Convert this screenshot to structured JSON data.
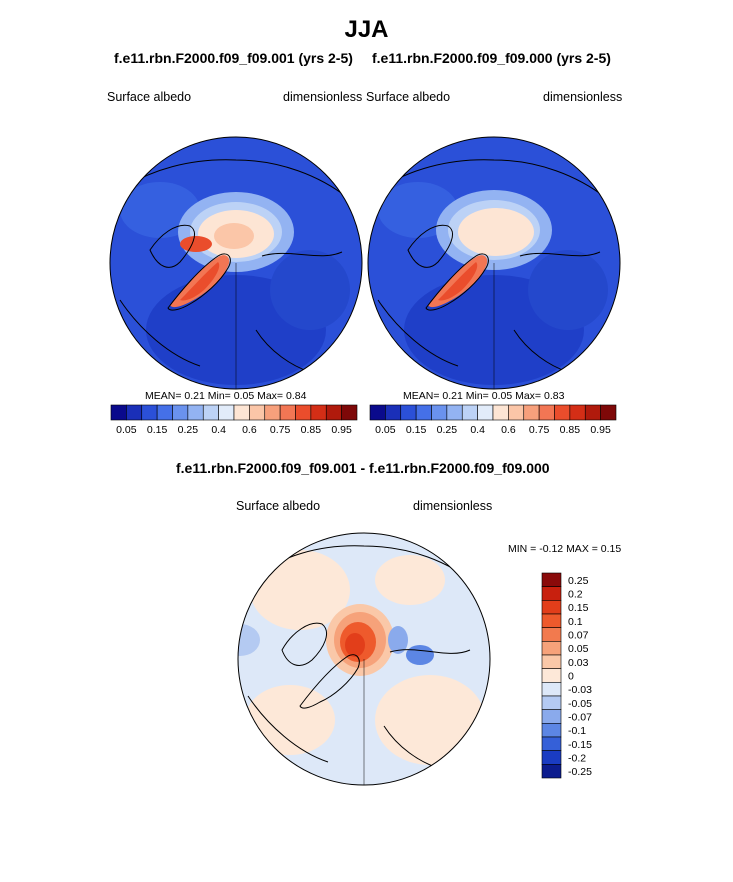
{
  "main_title": "JJA",
  "panels": [
    {
      "run_title": "f.e11.rbn.F2000.f09_f09.001 (yrs 2-5)",
      "left_label": "Surface albedo",
      "right_label": "dimensionless",
      "mean_label": "MEAN=",
      "mean": "0.21",
      "min_label": "Min=",
      "min": "0.05",
      "max_label": "Max=",
      "max": "0.84"
    },
    {
      "run_title": "f.e11.rbn.F2000.f09_f09.000 (yrs 2-5)",
      "left_label": "Surface albedo",
      "right_label": "dimensionless",
      "mean_label": "MEAN=",
      "mean": "0.21",
      "min_label": "Min=",
      "min": "0.05",
      "max_label": "Max=",
      "max": "0.83"
    }
  ],
  "colorbar": {
    "ticks": [
      "0.05",
      "0.15",
      "0.25",
      "0.4",
      "0.6",
      "0.75",
      "0.85",
      "0.95"
    ],
    "colors": [
      "#0a0a8c",
      "#1a2fb8",
      "#2b50d8",
      "#4570e8",
      "#6a92ee",
      "#93b3f2",
      "#bcd2f6",
      "#e2ecfa",
      "#fde5d4",
      "#fbc6a8",
      "#f7a07c",
      "#f27654",
      "#ea4d2c",
      "#d42e16",
      "#b01a0c",
      "#7e0808"
    ]
  },
  "diff": {
    "title": "f.e11.rbn.F2000.f09_f09.001 - f.e11.rbn.F2000.f09_f09.000",
    "left_label": "Surface albedo",
    "right_label": "dimensionless",
    "minmax": "MIN =  -0.12 MAX =   0.15",
    "ticks": [
      "0.25",
      "0.2",
      "0.15",
      "0.1",
      "0.07",
      "0.05",
      "0.03",
      "0",
      "-0.03",
      "-0.05",
      "-0.07",
      "-0.1",
      "-0.15",
      "-0.2",
      "-0.25"
    ],
    "colors": [
      "#8a0a0a",
      "#c8200e",
      "#e23e1a",
      "#ee5a2c",
      "#f27a4e",
      "#f6a27a",
      "#fac8a8",
      "#fde8d8",
      "#dde8f8",
      "#b4caf2",
      "#8aaaec",
      "#5c86e4",
      "#3560d8",
      "#1a3cc2",
      "#0c1c8e"
    ]
  },
  "chart_data": [
    {
      "type": "heatmap",
      "title": "f.e11.rbn.F2000.f09_f09.001 (yrs 2-5)",
      "variable": "Surface albedo",
      "units": "dimensionless",
      "projection": "north polar stereographic",
      "mean": 0.21,
      "min": 0.05,
      "max": 0.84,
      "levels": [
        0.05,
        0.1,
        0.15,
        0.2,
        0.25,
        0.3,
        0.4,
        0.5,
        0.6,
        0.7,
        0.75,
        0.8,
        0.85,
        0.9,
        0.95
      ]
    },
    {
      "type": "heatmap",
      "title": "f.e11.rbn.F2000.f09_f09.000 (yrs 2-5)",
      "variable": "Surface albedo",
      "units": "dimensionless",
      "projection": "north polar stereographic",
      "mean": 0.21,
      "min": 0.05,
      "max": 0.83,
      "levels": [
        0.05,
        0.1,
        0.15,
        0.2,
        0.25,
        0.3,
        0.4,
        0.5,
        0.6,
        0.7,
        0.75,
        0.8,
        0.85,
        0.9,
        0.95
      ]
    },
    {
      "type": "heatmap",
      "title": "f.e11.rbn.F2000.f09_f09.001 - f.e11.rbn.F2000.f09_f09.000",
      "variable": "Surface albedo",
      "units": "dimensionless",
      "projection": "north polar stereographic",
      "min": -0.12,
      "max": 0.15,
      "levels": [
        -0.25,
        -0.2,
        -0.15,
        -0.1,
        -0.07,
        -0.05,
        -0.03,
        0,
        0.03,
        0.05,
        0.07,
        0.1,
        0.15,
        0.2,
        0.25
      ]
    }
  ]
}
